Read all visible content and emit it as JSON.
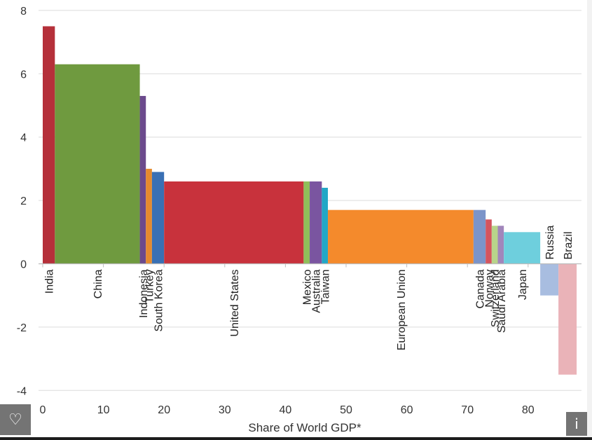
{
  "chart_data": {
    "type": "bar",
    "variant": "variable-width",
    "xlabel": "Share of World GDP*",
    "ylabel": "",
    "title": "",
    "xlim": [
      0,
      88
    ],
    "ylim": [
      -4,
      8
    ],
    "x_ticks": [
      "0",
      "10",
      "20",
      "30",
      "40",
      "50",
      "60",
      "70",
      "80"
    ],
    "y_ticks": [
      "-4",
      "-2",
      "0",
      "2",
      "4",
      "6",
      "8"
    ],
    "grid": "horizontal",
    "legend": "none",
    "bars": [
      {
        "label": "India",
        "x0": 0,
        "x1": 2,
        "value": 7.5,
        "color": "#b5303a"
      },
      {
        "label": "China",
        "x0": 2,
        "x1": 16,
        "value": 6.3,
        "color": "#6f9a3f"
      },
      {
        "label": "Indonesia",
        "x0": 16,
        "x1": 17,
        "value": 5.3,
        "color": "#6b4a8c"
      },
      {
        "label": "Turkey",
        "x0": 17,
        "x1": 18,
        "value": 3.0,
        "color": "#e58a2e"
      },
      {
        "label": "South Korea",
        "x0": 18,
        "x1": 20,
        "value": 2.9,
        "color": "#3a70b4"
      },
      {
        "label": "United States",
        "x0": 20,
        "x1": 43,
        "value": 2.6,
        "color": "#c8323c"
      },
      {
        "label": "Mexico",
        "x0": 43,
        "x1": 44,
        "value": 2.6,
        "color": "#8fbf5a"
      },
      {
        "label": "Australia",
        "x0": 44,
        "x1": 46,
        "value": 2.6,
        "color": "#7a55a0"
      },
      {
        "label": "Taiwan",
        "x0": 46,
        "x1": 47,
        "value": 2.4,
        "color": "#22a7c6"
      },
      {
        "label": "European Union",
        "x0": 47,
        "x1": 71,
        "value": 1.7,
        "color": "#f48a2c"
      },
      {
        "label": "Canada",
        "x0": 71,
        "x1": 73,
        "value": 1.7,
        "color": "#7b94c9"
      },
      {
        "label": "Norway",
        "x0": 73,
        "x1": 74,
        "value": 1.4,
        "color": "#d4545e"
      },
      {
        "label": "Switzerland",
        "x0": 74,
        "x1": 75,
        "value": 1.2,
        "color": "#b8d48a"
      },
      {
        "label": "Saudi Arabia",
        "x0": 75,
        "x1": 76,
        "value": 1.2,
        "color": "#a186bb"
      },
      {
        "label": "Japan",
        "x0": 76,
        "x1": 82,
        "value": 1.0,
        "color": "#6ecfdd"
      },
      {
        "label": "Russia",
        "x0": 82,
        "x1": 85,
        "value": -1.0,
        "color": "#a8bde0"
      },
      {
        "label": "Brazil",
        "x0": 85,
        "x1": 88,
        "value": -3.5,
        "color": "#eab3b8"
      }
    ]
  },
  "overlay": {
    "heart_icon": "♡",
    "info_icon": "i"
  }
}
